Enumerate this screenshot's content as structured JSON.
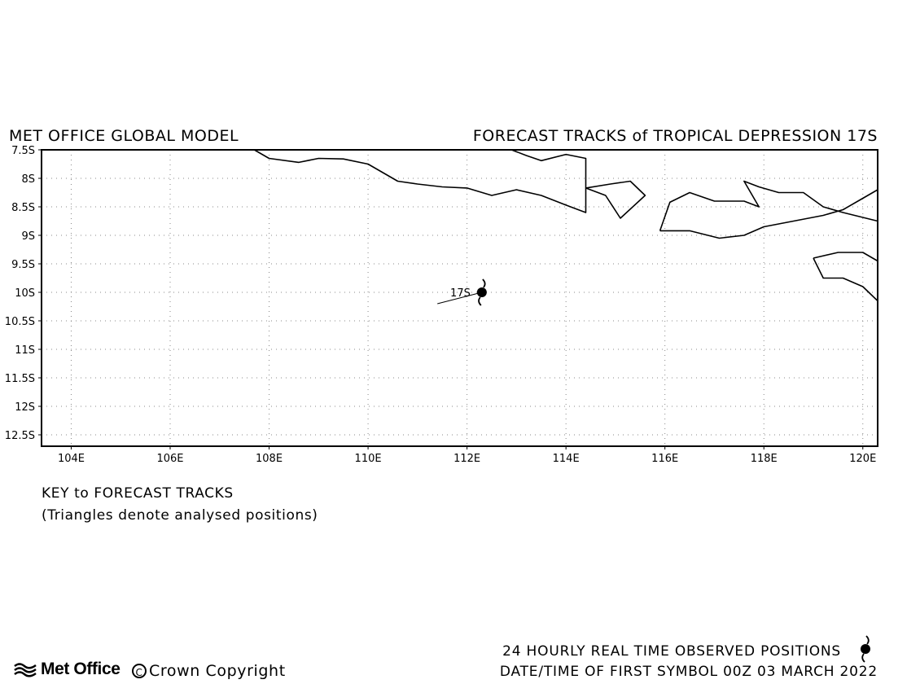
{
  "header": {
    "left_title": "MET OFFICE GLOBAL MODEL",
    "right_title": "FORECAST TRACKS of TROPICAL DEPRESSION 17S"
  },
  "map": {
    "lon_range": [
      103.4,
      120.3
    ],
    "lat_range": [
      -12.7,
      -7.5
    ],
    "lon_ticks": [
      104,
      106,
      108,
      110,
      112,
      114,
      116,
      118,
      120
    ],
    "lon_tick_labels": [
      "104E",
      "106E",
      "108E",
      "110E",
      "112E",
      "114E",
      "116E",
      "118E",
      "120E"
    ],
    "lat_ticks": [
      -7.5,
      -8,
      -8.5,
      -9,
      -9.5,
      -10,
      -10.5,
      -11,
      -11.5,
      -12,
      -12.5
    ],
    "lat_tick_labels": [
      "7.5S",
      "8S",
      "8.5S",
      "9S",
      "9.5S",
      "10S",
      "10.5S",
      "11S",
      "11.5S",
      "12S",
      "12.5S"
    ],
    "grid": "dotted",
    "storm": {
      "label": "17S",
      "lon": 112.3,
      "lat": -10.0,
      "track": [
        [
          111.4,
          -10.2
        ],
        [
          112.3,
          -10.0
        ]
      ]
    },
    "coastlines": [
      [
        [
          107.7,
          -7.5
        ],
        [
          108.0,
          -7.65
        ],
        [
          108.6,
          -7.72
        ],
        [
          109.0,
          -7.65
        ],
        [
          109.5,
          -7.66
        ],
        [
          110.0,
          -7.75
        ],
        [
          110.3,
          -7.9
        ],
        [
          110.6,
          -8.05
        ],
        [
          111.0,
          -8.1
        ],
        [
          111.5,
          -8.15
        ],
        [
          112.0,
          -8.17
        ],
        [
          112.5,
          -8.3
        ],
        [
          113.0,
          -8.2
        ],
        [
          113.5,
          -8.3
        ],
        [
          114.0,
          -8.47
        ],
        [
          114.4,
          -8.6
        ],
        [
          114.4,
          -7.65
        ],
        [
          114.0,
          -7.58
        ],
        [
          113.5,
          -7.69
        ],
        [
          113.2,
          -7.6
        ],
        [
          112.9,
          -7.5
        ]
      ],
      [
        [
          114.4,
          -8.17
        ],
        [
          114.8,
          -8.3
        ],
        [
          115.1,
          -8.7
        ],
        [
          115.6,
          -8.3
        ],
        [
          115.3,
          -8.05
        ],
        [
          114.9,
          -8.1
        ],
        [
          114.4,
          -8.17
        ]
      ],
      [
        [
          115.9,
          -8.92
        ],
        [
          116.1,
          -8.42
        ],
        [
          116.5,
          -8.25
        ],
        [
          117.0,
          -8.4
        ],
        [
          117.6,
          -8.4
        ],
        [
          117.9,
          -8.5
        ],
        [
          117.6,
          -8.05
        ],
        [
          117.9,
          -8.15
        ],
        [
          118.3,
          -8.25
        ],
        [
          118.8,
          -8.25
        ],
        [
          119.2,
          -8.5
        ],
        [
          119.6,
          -8.6
        ],
        [
          120.3,
          -8.75
        ]
      ],
      [
        [
          115.9,
          -8.92
        ],
        [
          116.5,
          -8.92
        ],
        [
          117.1,
          -9.05
        ],
        [
          117.6,
          -9.0
        ],
        [
          118.0,
          -8.85
        ],
        [
          118.6,
          -8.75
        ],
        [
          119.2,
          -8.65
        ],
        [
          119.6,
          -8.55
        ],
        [
          120.0,
          -8.35
        ],
        [
          120.3,
          -8.2
        ]
      ],
      [
        [
          119.0,
          -9.4
        ],
        [
          119.5,
          -9.3
        ],
        [
          120.0,
          -9.3
        ],
        [
          120.3,
          -9.45
        ]
      ],
      [
        [
          119.0,
          -9.4
        ],
        [
          119.2,
          -9.75
        ],
        [
          119.6,
          -9.75
        ],
        [
          120.0,
          -9.9
        ],
        [
          120.3,
          -10.15
        ]
      ]
    ]
  },
  "key": {
    "title": "KEY to FORECAST TRACKS",
    "subtitle": "(Triangles denote analysed positions)"
  },
  "footer": {
    "logo_text": "Met Office",
    "copyright_symbol": "C",
    "copyright_text": "Crown Copyright",
    "observed_text": "24 HOURLY REAL TIME OBSERVED POSITIONS",
    "date_text": "DATE/TIME OF FIRST SYMBOL 00Z 03 MARCH 2022"
  }
}
